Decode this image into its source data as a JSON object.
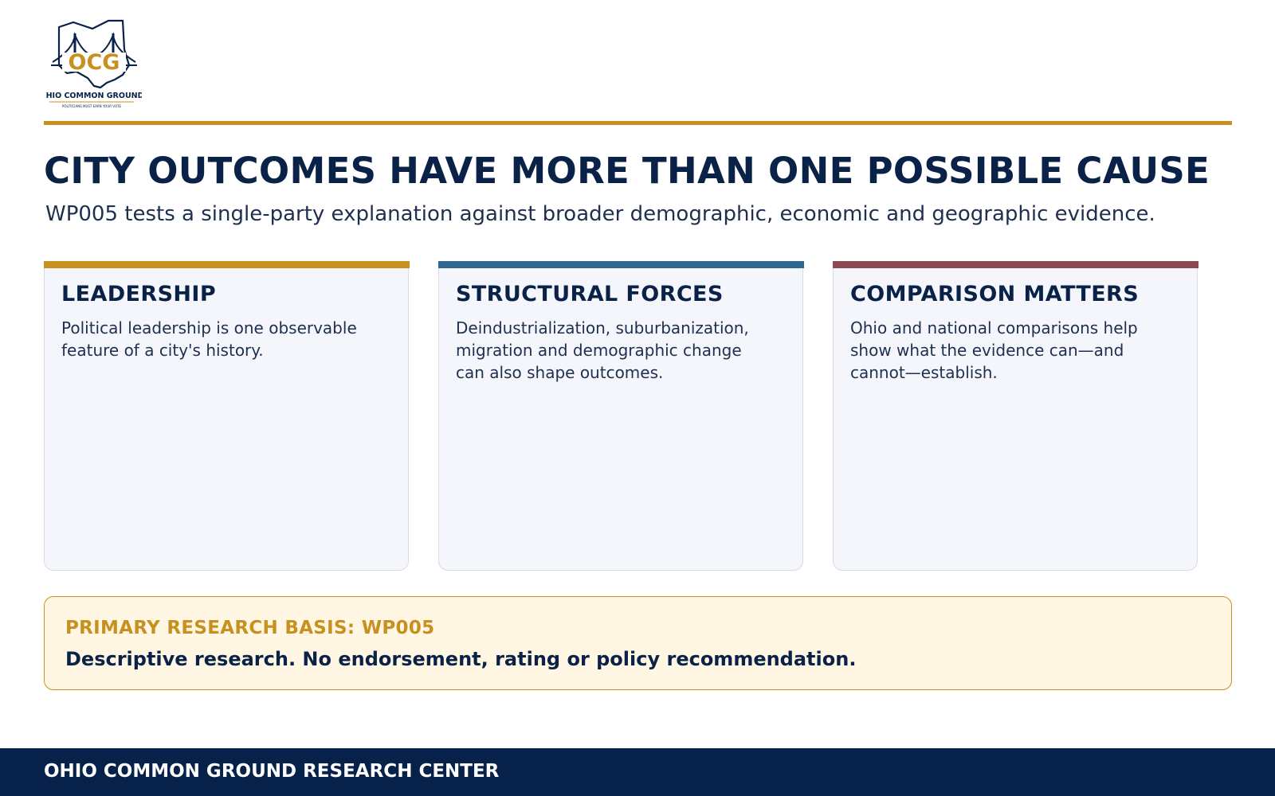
{
  "logo": {
    "initials": "OCG",
    "name": "OHIO COMMON GROUND",
    "tagline": "POLITICIANS MUST EARN YOUR VOTE"
  },
  "header": {
    "title": "CITY OUTCOMES HAVE MORE THAN ONE POSSIBLE CAUSE",
    "subtitle": "WP005 tests a single-party explanation against broader demographic, economic and geographic evidence."
  },
  "cards": [
    {
      "title": "LEADERSHIP",
      "text": "Political leadership is one observable feature of a city's history."
    },
    {
      "title": "STRUCTURAL FORCES",
      "text": "Deindustrialization, suburbanization, migration and demographic change can also shape outcomes."
    },
    {
      "title": "COMPARISON MATTERS",
      "text": "Ohio and national comparisons help show what the evidence can—and cannot—establish."
    }
  ],
  "note": {
    "label": "PRIMARY RESEARCH BASIS: WP005",
    "text": "Descriptive research. No endorsement, rating or policy recommendation."
  },
  "footer": {
    "text": "OHIO COMMON GROUND RESEARCH CENTER"
  }
}
